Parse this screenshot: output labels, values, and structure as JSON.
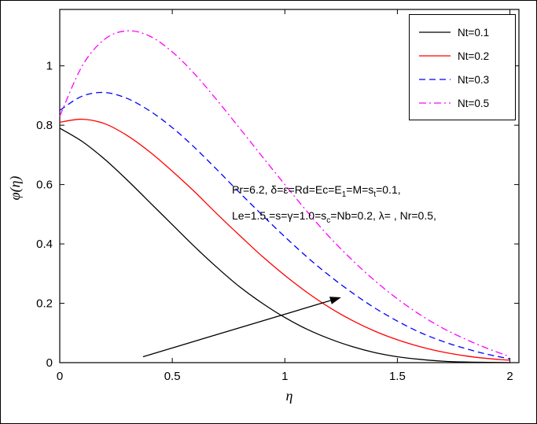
{
  "chart_data": {
    "type": "line",
    "title": "",
    "xlabel": "η",
    "ylabel": "φ(η)",
    "xlim": [
      0,
      2.04
    ],
    "ylim": [
      0,
      1.19
    ],
    "grid": false,
    "legend_position": "top-right",
    "xtick_values": [
      0,
      0.5,
      1,
      1.5,
      2
    ],
    "xtick_labels": [
      "0",
      "0.5",
      "1",
      "1.5",
      "2"
    ],
    "ytick_values": [
      0,
      0.2,
      0.4,
      0.6,
      0.8,
      1
    ],
    "ytick_labels": [
      "0",
      "0.2",
      "0.4",
      "0.6",
      "0.8",
      "1"
    ],
    "x": [
      0,
      0.1,
      0.2,
      0.3,
      0.4,
      0.5,
      0.6,
      0.7,
      0.8,
      0.9,
      1,
      1.1,
      1.2,
      1.3,
      1.4,
      1.5,
      1.6,
      1.7,
      1.8,
      1.9,
      2
    ],
    "series": [
      {
        "name": "Nt=0.1",
        "color": "#000000",
        "style": "solid",
        "values": [
          0.79,
          0.745,
          0.685,
          0.615,
          0.54,
          0.465,
          0.39,
          0.32,
          0.255,
          0.2,
          0.152,
          0.112,
          0.08,
          0.054,
          0.034,
          0.02,
          0.011,
          0.005,
          0.002,
          0.001,
          0
        ]
      },
      {
        "name": "Nt=0.2",
        "color": "#ff0000",
        "style": "solid",
        "values": [
          0.81,
          0.82,
          0.805,
          0.765,
          0.71,
          0.645,
          0.575,
          0.5,
          0.428,
          0.358,
          0.294,
          0.236,
          0.185,
          0.142,
          0.106,
          0.077,
          0.054,
          0.036,
          0.023,
          0.014,
          0.008
        ]
      },
      {
        "name": "Nt=0.3",
        "color": "#0000ff",
        "style": "dashed",
        "values": [
          0.85,
          0.898,
          0.91,
          0.89,
          0.848,
          0.792,
          0.724,
          0.649,
          0.572,
          0.497,
          0.424,
          0.355,
          0.292,
          0.235,
          0.184,
          0.14,
          0.102,
          0.072,
          0.048,
          0.028,
          0.013
        ]
      },
      {
        "name": "Nt=0.5",
        "color": "#ff00ff",
        "style": "dashdot",
        "values": [
          0.83,
          1.0,
          1.09,
          1.118,
          1.1,
          1.047,
          0.972,
          0.883,
          0.789,
          0.694,
          0.6,
          0.508,
          0.422,
          0.345,
          0.276,
          0.215,
          0.162,
          0.117,
          0.08,
          0.048,
          0.02
        ]
      }
    ],
    "arrow": {
      "from": [
        0.37,
        0.02
      ],
      "to": [
        1.25,
        0.22
      ]
    },
    "annotation": {
      "line1_parts": [
        {
          "text": "Pr=6.2, δ=ε=Rd=Ec=E"
        },
        {
          "text": "1",
          "sub": true
        },
        {
          "text": "=M=s"
        },
        {
          "text": "t",
          "sub": true
        },
        {
          "text": "=0.1,"
        }
      ],
      "line2_parts": [
        {
          "text": "Le=1.5,=s=γ=1.0=s"
        },
        {
          "text": "c",
          "sub": true
        },
        {
          "text": "=Nb=0.2, λ= , Nr=0.5,"
        }
      ]
    }
  }
}
